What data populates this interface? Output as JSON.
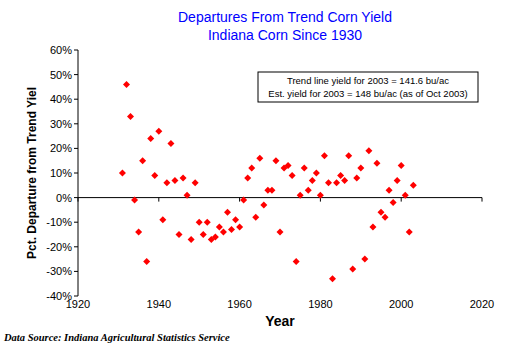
{
  "chart_data": {
    "type": "scatter",
    "title": "Departures From Trend Corn Yield",
    "subtitle": "Indiana Corn Since 1930",
    "x_label": "Year",
    "y_label": "Pct. Departure from Trend Yiel",
    "annotations": [
      "Trend line yield for 2003 = 141.6 bu/ac",
      "Est. yield for 2003 = 148 bu/ac (as of Oct 2003)"
    ],
    "source": "Data Source: Indiana Agricultural Statistics Service",
    "x": [
      1931,
      1932,
      1933,
      1934,
      1935,
      1936,
      1937,
      1938,
      1939,
      1940,
      1941,
      1942,
      1943,
      1944,
      1945,
      1946,
      1947,
      1948,
      1949,
      1950,
      1951,
      1952,
      1953,
      1954,
      1955,
      1956,
      1957,
      1958,
      1959,
      1960,
      1961,
      1962,
      1963,
      1964,
      1965,
      1966,
      1967,
      1968,
      1969,
      1970,
      1971,
      1972,
      1973,
      1974,
      1975,
      1976,
      1977,
      1978,
      1979,
      1980,
      1981,
      1982,
      1983,
      1984,
      1985,
      1986,
      1987,
      1988,
      1989,
      1990,
      1991,
      1992,
      1993,
      1994,
      1995,
      1996,
      1997,
      1998,
      1999,
      2000,
      2001,
      2002,
      2003
    ],
    "values": [
      10,
      46,
      33,
      -1,
      -14,
      15,
      -26,
      24,
      9,
      27,
      -9,
      6,
      22,
      7,
      -15,
      8,
      1,
      -17,
      6,
      -10,
      -15,
      -10,
      -17,
      -16,
      -12,
      -14,
      -6,
      -13,
      -9,
      -12,
      -1,
      8,
      12,
      -8,
      16,
      -3,
      3,
      3,
      15,
      -14,
      12,
      13,
      9,
      -26,
      1,
      12,
      3,
      7,
      10,
      1,
      17,
      6,
      -33,
      6,
      9,
      7,
      17,
      -29,
      8,
      12,
      -25,
      19,
      -12,
      14,
      -6,
      -8,
      3,
      -2,
      7,
      13,
      1,
      -14,
      5
    ],
    "color": "#ff0000",
    "marker": "diamond",
    "xlim": [
      1920,
      2020
    ],
    "xticks": [
      1920,
      1940,
      1960,
      1980,
      2000,
      2020
    ],
    "ylim": [
      -40,
      60
    ],
    "yticks": [
      {
        "value": -40,
        "label": "-40%"
      },
      {
        "value": -30,
        "label": "-30%"
      },
      {
        "value": -20,
        "label": "-20%"
      },
      {
        "value": -10,
        "label": "-10%"
      },
      {
        "value": 0,
        "label": "0%"
      },
      {
        "value": 10,
        "label": "10%"
      },
      {
        "value": 20,
        "label": "20%"
      },
      {
        "value": 30,
        "label": "30%"
      },
      {
        "value": 40,
        "label": "40%"
      },
      {
        "value": 50,
        "label": "50%"
      },
      {
        "value": 60,
        "label": "60%"
      }
    ],
    "grid": false
  }
}
